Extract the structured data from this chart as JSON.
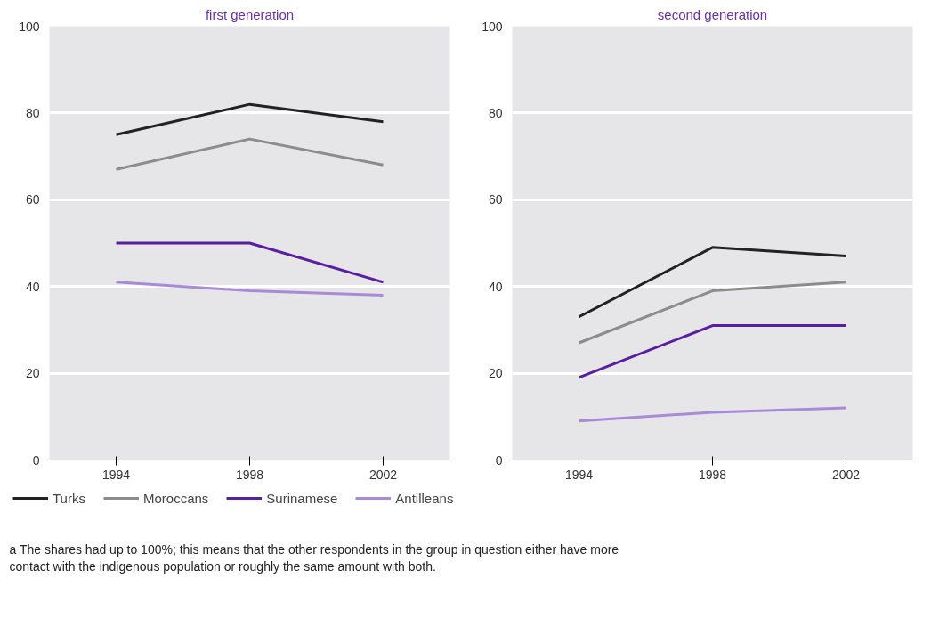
{
  "chart_data": [
    {
      "type": "line",
      "title": "first generation",
      "x": [
        1994,
        1998,
        2002
      ],
      "xlim": [
        1992,
        2004
      ],
      "xticks": [
        1994,
        1998,
        2002
      ],
      "ylim": [
        0,
        100
      ],
      "yticks": [
        0,
        20,
        40,
        60,
        80,
        100
      ],
      "grid": "y",
      "legend": "bottom",
      "line_style": "solid",
      "series": [
        {
          "name": "Turks",
          "color": "#222222",
          "values": [
            75,
            82,
            78
          ]
        },
        {
          "name": "Moroccans",
          "color": "#8c8c8c",
          "values": [
            67,
            74,
            68
          ]
        },
        {
          "name": "Surinamese",
          "color": "#5a1fa0",
          "values": [
            50,
            50,
            41
          ]
        },
        {
          "name": "Antilleans",
          "color": "#a88ad8",
          "values": [
            41,
            39,
            38
          ]
        }
      ],
      "annotations": [
        "a    The shares had up to 100%; this means that the other respondents in the group in question either have more\n      contact with the indigenous population or roughly the same amount with both."
      ]
    },
    {
      "type": "line",
      "title": "second generation",
      "x": [
        1994,
        1998,
        2002
      ],
      "xlim": [
        1992,
        2004
      ],
      "xticks": [
        1994,
        1998,
        2002
      ],
      "ylim": [
        0,
        100
      ],
      "yticks": [
        0,
        20,
        40,
        60,
        80,
        100
      ],
      "grid": "y",
      "line_style": "solid",
      "series": [
        {
          "color": "#222222",
          "values": [
            33,
            49,
            47
          ]
        },
        {
          "color": "#8c8c8c",
          "values": [
            27,
            39,
            41
          ]
        },
        {
          "color": "#5a1fa0",
          "values": [
            19,
            31,
            31
          ]
        },
        {
          "color": "#a88ad8",
          "values": [
            9,
            11,
            12
          ]
        }
      ]
    }
  ]
}
